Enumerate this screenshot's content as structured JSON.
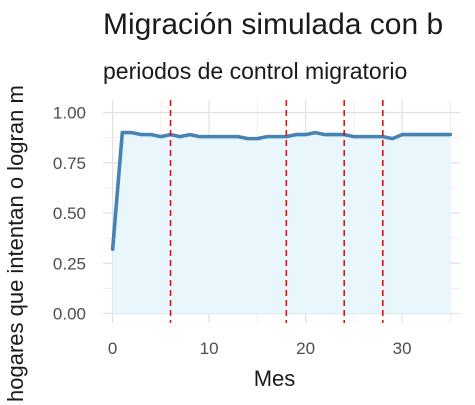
{
  "chart_data": {
    "type": "line",
    "title": "Migración simulada con b",
    "subtitle": "periodos de control migratorio",
    "xlabel": "Mes",
    "ylabel": "hogares que intentan o logran m",
    "xlim": [
      -1,
      36
    ],
    "ylim": [
      0,
      1.0
    ],
    "x_ticks": [
      0,
      10,
      20,
      30
    ],
    "y_ticks": [
      0.0,
      0.25,
      0.5,
      0.75,
      1.0
    ],
    "y_tick_labels": [
      "0.00",
      "0.25",
      "0.50",
      "0.75",
      "1.00"
    ],
    "grid": true,
    "x": [
      0,
      1,
      2,
      3,
      4,
      5,
      6,
      7,
      8,
      9,
      10,
      11,
      12,
      13,
      14,
      15,
      16,
      17,
      18,
      19,
      20,
      21,
      22,
      23,
      24,
      25,
      26,
      27,
      28,
      29,
      30,
      31,
      32,
      33,
      34,
      35
    ],
    "series": [
      {
        "values": [
          0.32,
          0.9,
          0.9,
          0.89,
          0.89,
          0.88,
          0.89,
          0.88,
          0.89,
          0.88,
          0.88,
          0.88,
          0.88,
          0.88,
          0.87,
          0.87,
          0.88,
          0.88,
          0.88,
          0.89,
          0.89,
          0.9,
          0.89,
          0.89,
          0.89,
          0.88,
          0.88,
          0.88,
          0.88,
          0.87,
          0.89,
          0.89,
          0.89,
          0.89,
          0.89,
          0.89
        ],
        "color": "#4682b4",
        "fill": "#e9f6fc"
      }
    ],
    "vlines": [
      6,
      18,
      24,
      28
    ],
    "vline_color": "#dd1111"
  }
}
